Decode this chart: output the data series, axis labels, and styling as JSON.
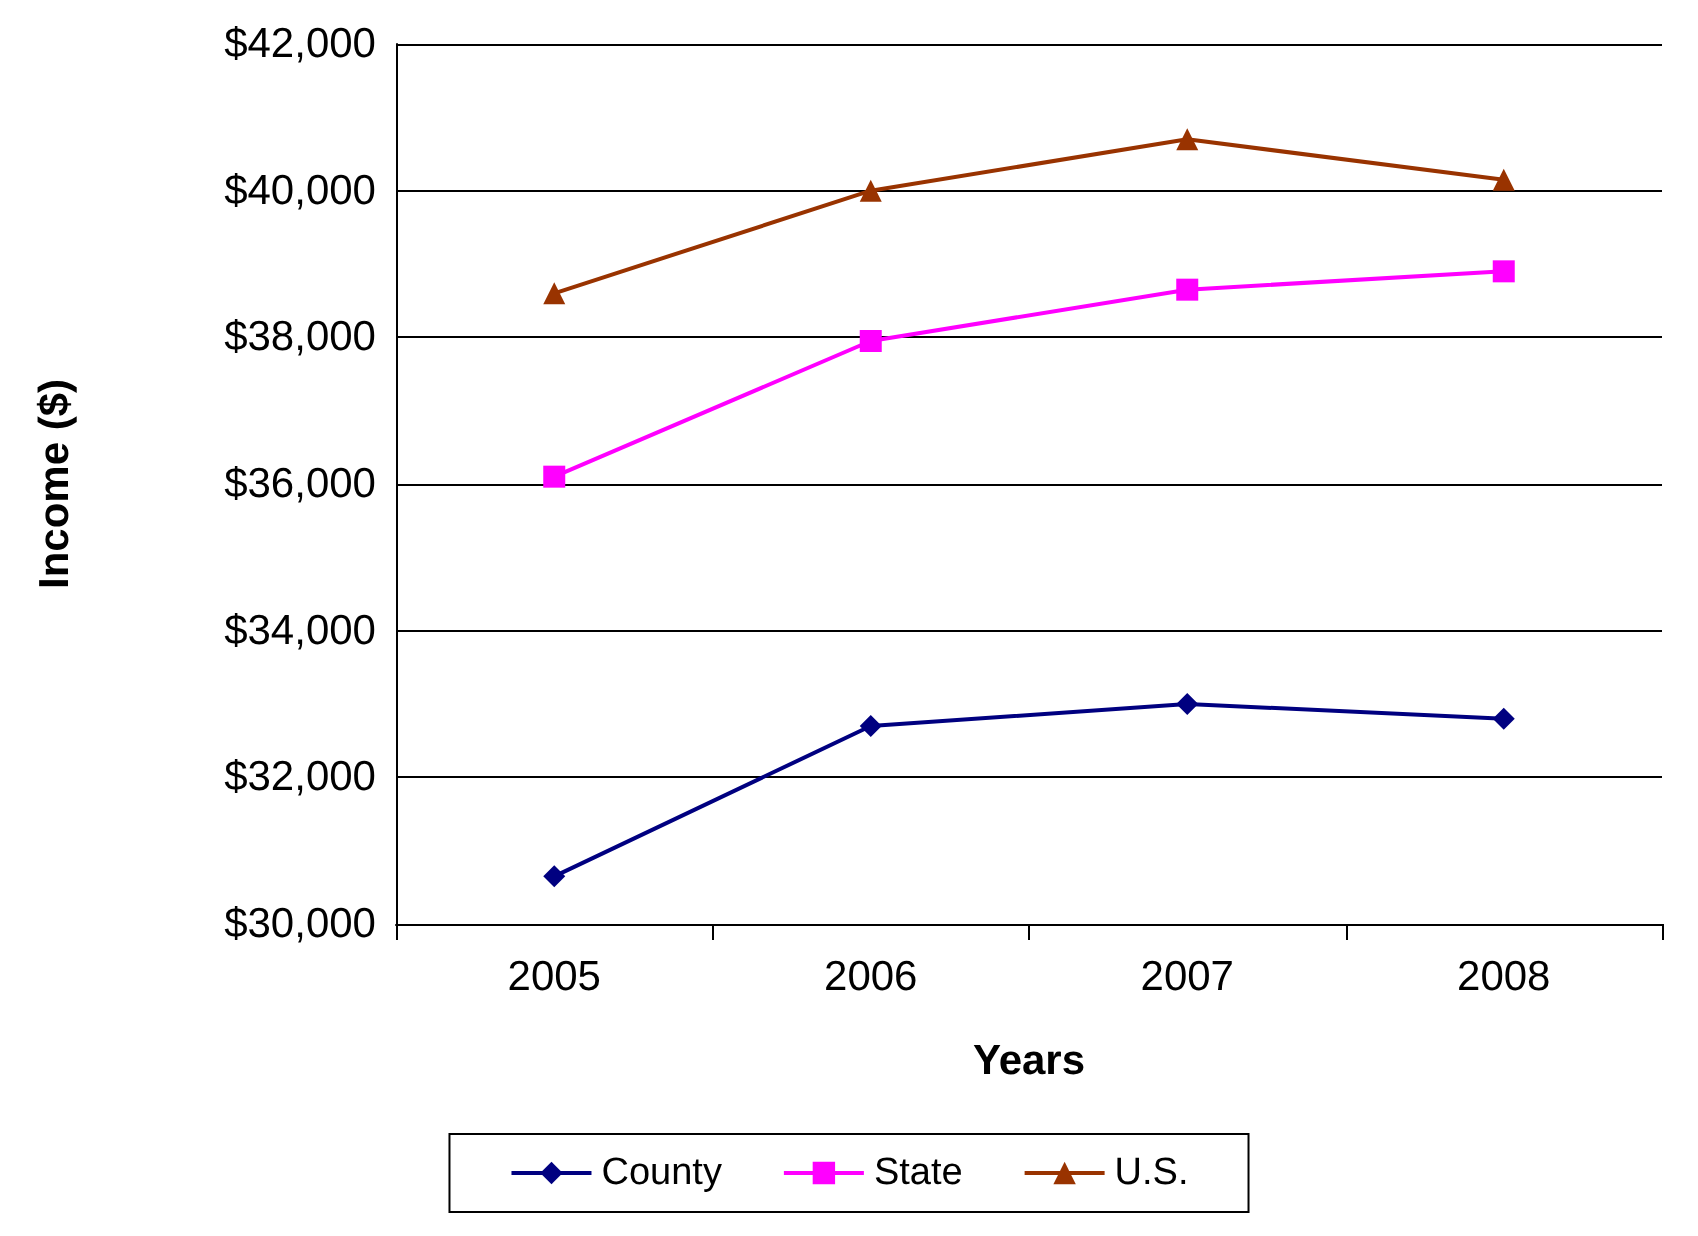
{
  "chart_data": {
    "type": "line",
    "xlabel": "Years",
    "ylabel": "Income ($)",
    "categories": [
      "2005",
      "2006",
      "2007",
      "2008"
    ],
    "series": [
      {
        "name": "County",
        "color": "#000080",
        "marker": "diamond",
        "values": [
          30650,
          32700,
          33000,
          32800
        ]
      },
      {
        "name": "State",
        "color": "#ff00ff",
        "marker": "square",
        "values": [
          36100,
          37950,
          38650,
          38900
        ]
      },
      {
        "name": "U.S.",
        "color": "#993300",
        "marker": "triangle",
        "values": [
          38600,
          40000,
          40700,
          40150
        ]
      }
    ],
    "ylim": [
      30000,
      42000
    ],
    "yticks": [
      {
        "value": 30000,
        "label": "$30,000"
      },
      {
        "value": 32000,
        "label": "$32,000"
      },
      {
        "value": 34000,
        "label": "$34,000"
      },
      {
        "value": 36000,
        "label": "$36,000"
      },
      {
        "value": 38000,
        "label": "$38,000"
      },
      {
        "value": 40000,
        "label": "$40,000"
      },
      {
        "value": 42000,
        "label": "$42,000"
      }
    ],
    "grid": "y",
    "legend": "bottom"
  }
}
